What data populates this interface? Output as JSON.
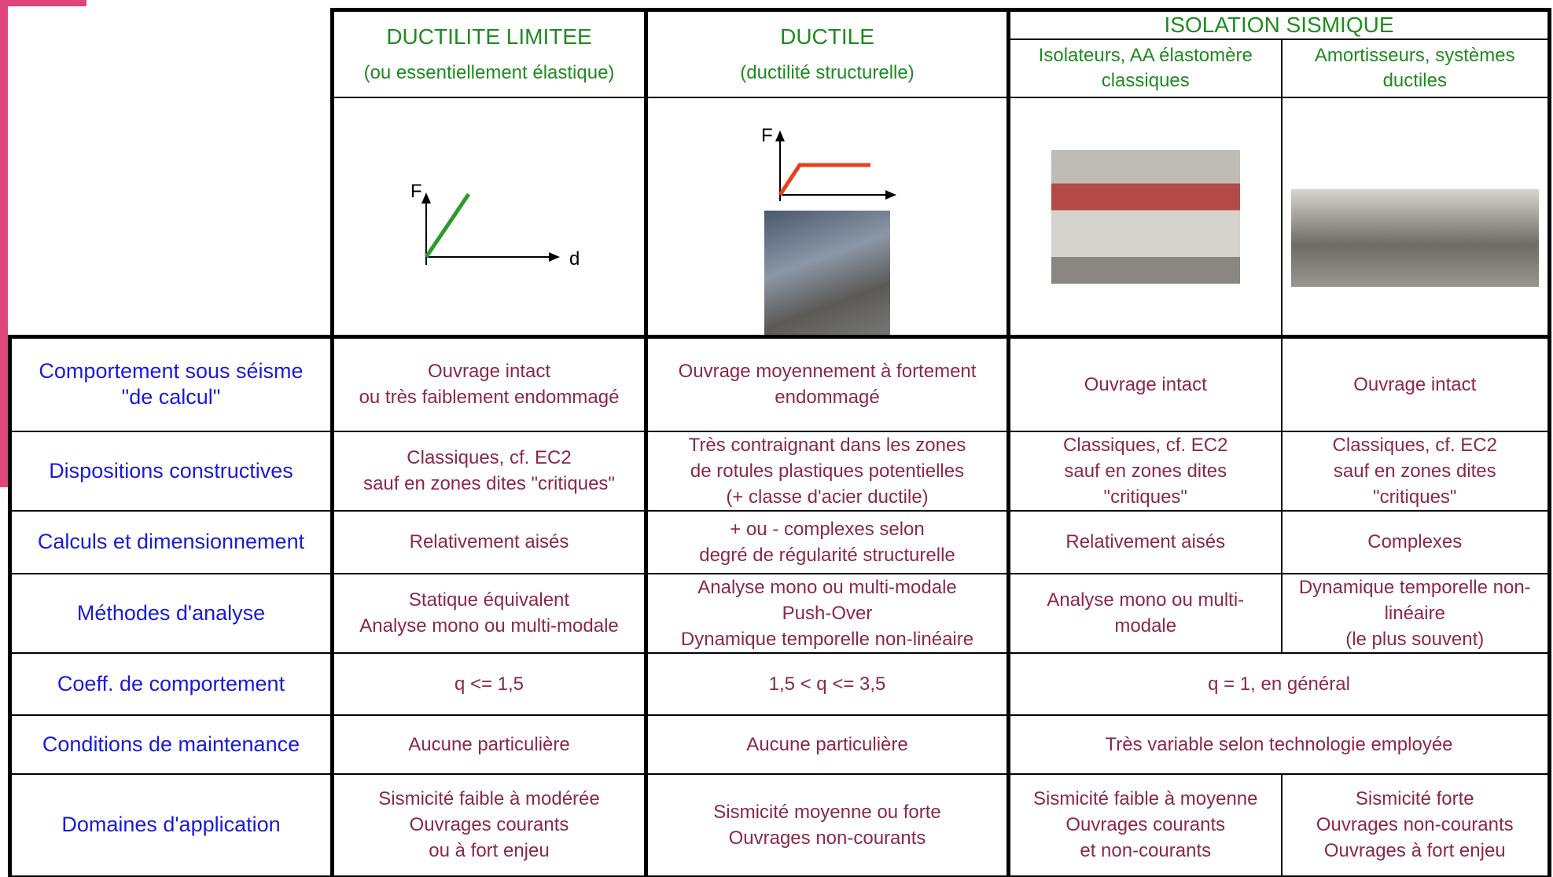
{
  "header": {
    "groups": [
      {
        "title": "DUCTILITE LIMITEE",
        "subtitle": "(ou essentiellement élastique)"
      },
      {
        "title": "DUCTILE",
        "subtitle": "(ductilité structurelle)"
      },
      {
        "title": "ISOLATION SISMIQUE",
        "subcolumns": [
          "Isolateurs, AA élastomère classiques",
          "Amortisseurs, systèmes ductiles"
        ]
      }
    ]
  },
  "diagrams": [
    {
      "y_label": "F",
      "x_label": "d"
    },
    {
      "y_label": "F"
    }
  ],
  "table": {
    "rows": [
      {
        "label": "Comportement sous séisme\n\"de calcul\"",
        "cells": [
          "Ouvrage intact\nou très faiblement endommagé",
          "Ouvrage moyennement à fortement endommagé",
          "Ouvrage intact",
          "Ouvrage intact"
        ]
      },
      {
        "label": "Dispositions constructives",
        "cells": [
          "Classiques, cf. EC2\nsauf en zones dites \"critiques\"",
          "Très contraignant dans les zones\nde rotules plastiques potentielles\n(+ classe d'acier ductile)",
          "Classiques, cf. EC2\nsauf en zones dites\n\"critiques\"",
          "Classiques, cf. EC2\nsauf en zones dites\n\"critiques\""
        ]
      },
      {
        "label": "Calculs et dimensionnement",
        "cells": [
          "Relativement aisés",
          "+ ou - complexes selon\ndegré de régularité structurelle",
          "Relativement aisés",
          "Complexes"
        ]
      },
      {
        "label": "Méthodes d'analyse",
        "cells": [
          "Statique équivalent\nAnalyse mono ou multi-modale",
          "Analyse mono ou multi-modale\nPush-Over\nDynamique temporelle non-linéaire",
          "Analyse mono ou multi-\nmodale",
          "Dynamique temporelle non-\nlinéaire\n(le plus souvent)"
        ]
      },
      {
        "label": "Coeff. de comportement",
        "cells": [
          "q <= 1,5",
          "1,5 < q <= 3,5",
          "q = 1, en général"
        ]
      },
      {
        "label": "Conditions de maintenance",
        "cells": [
          "Aucune particulière",
          "Aucune particulière",
          "Très variable selon technologie employée"
        ]
      },
      {
        "label": "Domaines d'application",
        "cells": [
          "Sismicité faible à modérée\nOuvrages courants\nou à fort enjeu",
          "Sismicité moyenne ou forte\nOuvrages non-courants",
          "Sismicité faible à moyenne\nOuvrages courants\net non-courants",
          "Sismicité forte\nOuvrages non-courants\nOuvrages à fort enjeu"
        ]
      }
    ]
  }
}
